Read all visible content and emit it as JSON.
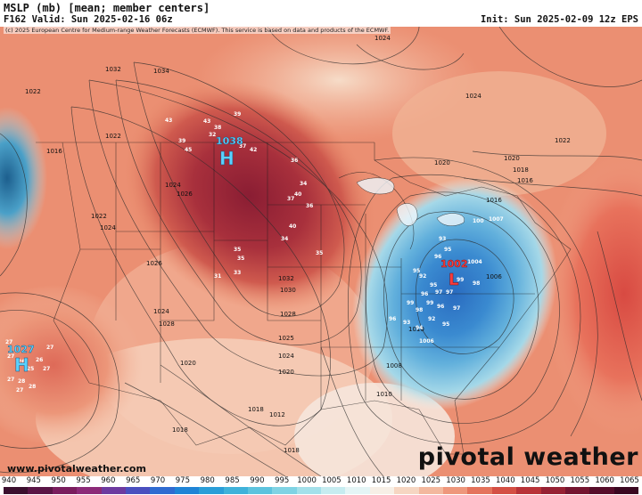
{
  "header": {
    "title": "MSLP (mb) [mean; member centers]",
    "valid": "F162 Valid: Sun 2025-02-16 06z",
    "init": "Init: Sun 2025-02-09 12z EPS"
  },
  "map": {
    "copyright": "(c) 2025 European Centre for Medium-range Weather Forecasts (ECMWF). This service is based on data and products of the ECMWF.",
    "centers": [
      {
        "letter": "H",
        "value": "1038",
        "color": "#5ad2ff"
      },
      {
        "letter": "H",
        "value": "1027",
        "color": "#5ad2ff"
      },
      {
        "letter": "L",
        "value": "1002",
        "color": "#ff3b3b"
      }
    ],
    "isobar_labels": [
      "1032",
      "1034",
      "1022",
      "1022",
      "1024",
      "1026",
      "1022",
      "1024",
      "1026",
      "1024",
      "1028",
      "1032",
      "1030",
      "1028",
      "1025",
      "1024",
      "1020",
      "1020",
      "1018",
      "1018",
      "1016",
      "1024",
      "1020",
      "1022",
      "1024",
      "1020",
      "1018",
      "1016",
      "1010",
      "1006",
      "1008",
      "1010",
      "1012",
      "1018",
      "1016",
      "1014"
    ],
    "member_values_high_ne": [
      "39",
      "43",
      "43",
      "38",
      "32",
      "39",
      "45",
      "37",
      "42",
      "36",
      "34",
      "40",
      "37",
      "36",
      "34",
      "40",
      "35",
      "35",
      "31",
      "33",
      "35"
    ],
    "member_values_low": [
      "93",
      "95",
      "96",
      "95",
      "92",
      "95",
      "96",
      "97",
      "97",
      "99",
      "98",
      "99",
      "96",
      "96",
      "93",
      "94",
      "92",
      "95",
      "100",
      "1004",
      "1006",
      "1007",
      "99",
      "98",
      "97"
    ],
    "member_values_high_pac": [
      "27",
      "27",
      "27",
      "26",
      "26",
      "25",
      "27",
      "27",
      "28",
      "28",
      "27"
    ],
    "website": "www.pivotalweather.com",
    "brand": "pivotal weather"
  },
  "colorbar": {
    "labels": [
      "940",
      "945",
      "950",
      "955",
      "960",
      "965",
      "970",
      "975",
      "980",
      "985",
      "990",
      "995",
      "1000",
      "1005",
      "1010",
      "1015",
      "1020",
      "1025",
      "1030",
      "1035",
      "1040",
      "1045",
      "1050",
      "1055",
      "1060",
      "1065"
    ],
    "colors": [
      "#3b0f2e",
      "#5a1546",
      "#7a1d5e",
      "#8c2a78",
      "#6d3aa0",
      "#4a4fbf",
      "#2f6bd1",
      "#1f84d6",
      "#2a9ed8",
      "#3fb2da",
      "#5cc3de",
      "#7fd3e4",
      "#a3e0ea",
      "#c6ecf0",
      "#e4f5f6",
      "#f7efe6",
      "#f6d6c2",
      "#f3b89e",
      "#ee977c",
      "#e4735c",
      "#d44f44",
      "#b83338",
      "#962133",
      "#741530",
      "#560d2a",
      "#3a0720"
    ]
  }
}
